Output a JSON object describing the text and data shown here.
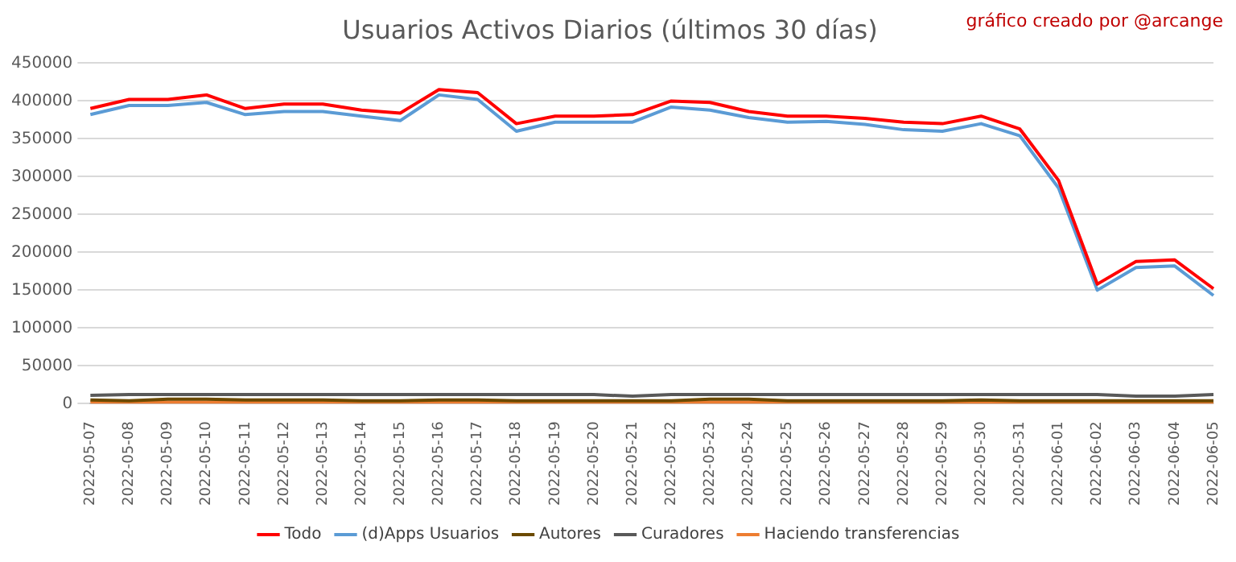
{
  "chart_data": {
    "type": "line",
    "title": "Usuarios Activos Diarios (últimos 30 días)",
    "annotations": [
      "gráfico creado por @arcange"
    ],
    "categories": [
      "2022-05-07",
      "2022-05-08",
      "2022-05-09",
      "2022-05-10",
      "2022-05-11",
      "2022-05-12",
      "2022-05-13",
      "2022-05-14",
      "2022-05-15",
      "2022-05-16",
      "2022-05-17",
      "2022-05-18",
      "2022-05-19",
      "2022-05-20",
      "2022-05-21",
      "2022-05-22",
      "2022-05-23",
      "2022-05-24",
      "2022-05-25",
      "2022-05-26",
      "2022-05-27",
      "2022-05-28",
      "2022-05-29",
      "2022-05-30",
      "2022-05-31",
      "2022-06-01",
      "2022-06-02",
      "2022-06-03",
      "2022-06-04",
      "2022-06-05"
    ],
    "series": [
      {
        "name": "Todo",
        "color": "#ff0000",
        "values": [
          390000,
          402000,
          402000,
          408000,
          390000,
          396000,
          396000,
          388000,
          384000,
          415000,
          411000,
          370000,
          380000,
          380000,
          382000,
          400000,
          398000,
          386000,
          380000,
          380000,
          377000,
          372000,
          370000,
          380000,
          363000,
          295000,
          158000,
          188000,
          190000,
          152000
        ]
      },
      {
        "name": "(d)Apps Usuarios",
        "color": "#5b9bd5",
        "values": [
          382000,
          394000,
          394000,
          398000,
          382000,
          386000,
          386000,
          380000,
          374000,
          408000,
          402000,
          360000,
          372000,
          372000,
          372000,
          392000,
          388000,
          378000,
          372000,
          373000,
          369000,
          362000,
          360000,
          370000,
          354000,
          285000,
          150000,
          180000,
          182000,
          143000
        ]
      },
      {
        "name": "Autores",
        "color": "#6b4a00",
        "values": [
          5000,
          4000,
          6000,
          6000,
          5000,
          5000,
          5000,
          4000,
          4000,
          5000,
          5000,
          4000,
          4000,
          4000,
          4000,
          4000,
          6000,
          6000,
          4000,
          4000,
          4000,
          4000,
          4000,
          5000,
          4000,
          4000,
          4000,
          4000,
          4000,
          4000
        ]
      },
      {
        "name": "Curadores",
        "color": "#595959",
        "values": [
          11000,
          12000,
          12000,
          12000,
          12000,
          12000,
          12000,
          12000,
          12000,
          12000,
          12000,
          12000,
          12000,
          12000,
          10000,
          12000,
          12000,
          12000,
          12000,
          12000,
          12000,
          12000,
          12000,
          12000,
          12000,
          12000,
          12000,
          10000,
          10000,
          12000
        ]
      },
      {
        "name": "Haciendo transferencias",
        "color": "#ed7d31",
        "values": [
          2000,
          2000,
          2000,
          2000,
          2000,
          2000,
          2000,
          2000,
          2000,
          2000,
          2000,
          2000,
          2000,
          2000,
          2000,
          2000,
          2000,
          2000,
          2000,
          2000,
          2000,
          2000,
          2000,
          2000,
          2000,
          2000,
          2000,
          2000,
          2000,
          2000
        ]
      }
    ],
    "ylim": [
      0,
      450000
    ],
    "yticks": [
      0,
      50000,
      100000,
      150000,
      200000,
      250000,
      300000,
      350000,
      400000,
      450000
    ],
    "grid": "y",
    "legend": "bottom",
    "marker": "none",
    "line_style": "solid"
  }
}
